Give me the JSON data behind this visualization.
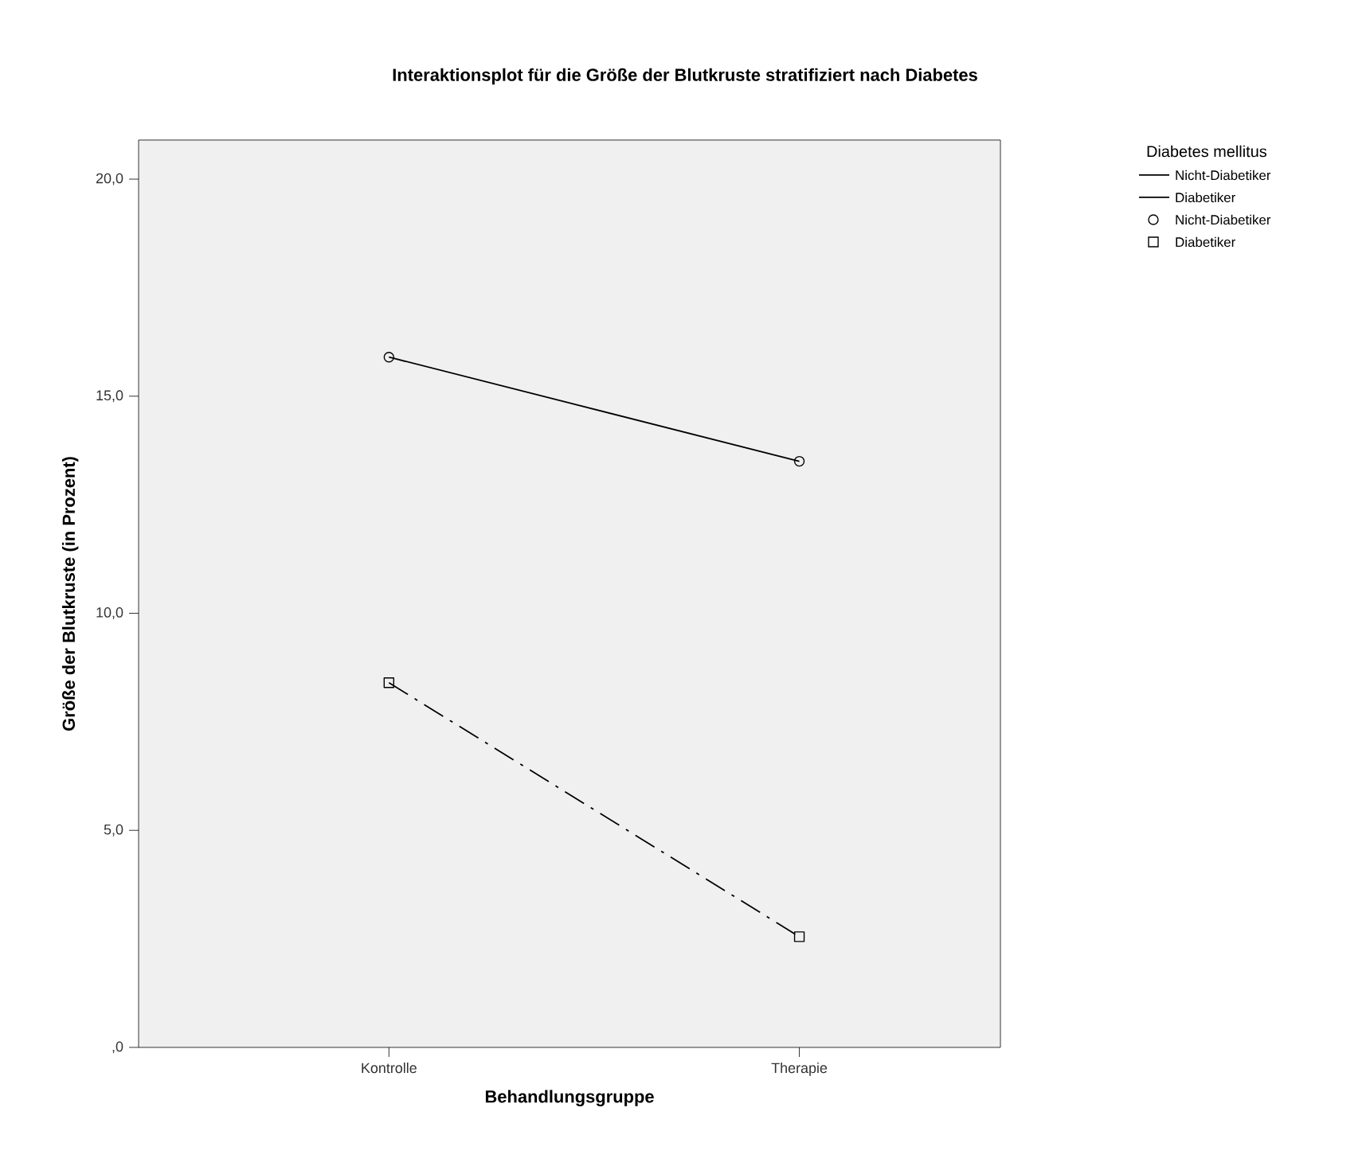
{
  "chart_data": {
    "type": "line",
    "title": "Interaktionsplot für die Größe der Blutkruste stratifiziert nach Diabetes",
    "xlabel": "Behandlungsgruppe",
    "ylabel": "Größe der Blutkruste (in Prozent)",
    "legend_title": "Diabetes mellitus",
    "categories": [
      "Kontrolle",
      "Therapie"
    ],
    "series": [
      {
        "name": "Nicht-Diabetiker",
        "color": "#000000",
        "values": [
          15.9,
          13.5
        ],
        "marker": "circle",
        "line_style": "solid"
      },
      {
        "name": "Diabetiker",
        "color": "#000000",
        "values": [
          8.4,
          2.55
        ],
        "marker": "square",
        "line_style": "dashed"
      }
    ],
    "ylim": [
      0,
      20.9
    ],
    "yticks": [
      {
        "value": 0,
        "label": ",0"
      },
      {
        "value": 5,
        "label": "5,0"
      },
      {
        "value": 10,
        "label": "10,0"
      },
      {
        "value": 15,
        "label": "15,0"
      },
      {
        "value": 20,
        "label": "20,0"
      }
    ],
    "grid": false,
    "legend": "top right"
  }
}
